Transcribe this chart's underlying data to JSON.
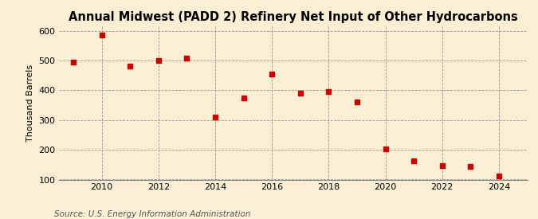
{
  "title": "Annual Midwest (PADD 2) Refinery Net Input of Other Hydrocarbons",
  "ylabel": "Thousand Barrels",
  "source": "Source: U.S. Energy Information Administration",
  "background_color": "#faefd4",
  "years": [
    2009,
    2010,
    2011,
    2012,
    2013,
    2014,
    2015,
    2016,
    2017,
    2018,
    2019,
    2020,
    2021,
    2022,
    2023,
    2024
  ],
  "values": [
    495,
    585,
    482,
    500,
    508,
    310,
    375,
    455,
    390,
    395,
    360,
    202,
    163,
    148,
    143,
    113
  ],
  "marker_color": "#cc0000",
  "marker": "s",
  "marker_size": 4,
  "ylim": [
    100,
    615
  ],
  "yticks": [
    100,
    200,
    300,
    400,
    500,
    600
  ],
  "xlim": [
    2008.5,
    2025.0
  ],
  "xticks": [
    2010,
    2012,
    2014,
    2016,
    2018,
    2020,
    2022,
    2024
  ],
  "grid_color": "#999999",
  "grid_style": "--",
  "title_fontsize": 10.5,
  "label_fontsize": 8,
  "tick_fontsize": 8,
  "source_fontsize": 7.5
}
